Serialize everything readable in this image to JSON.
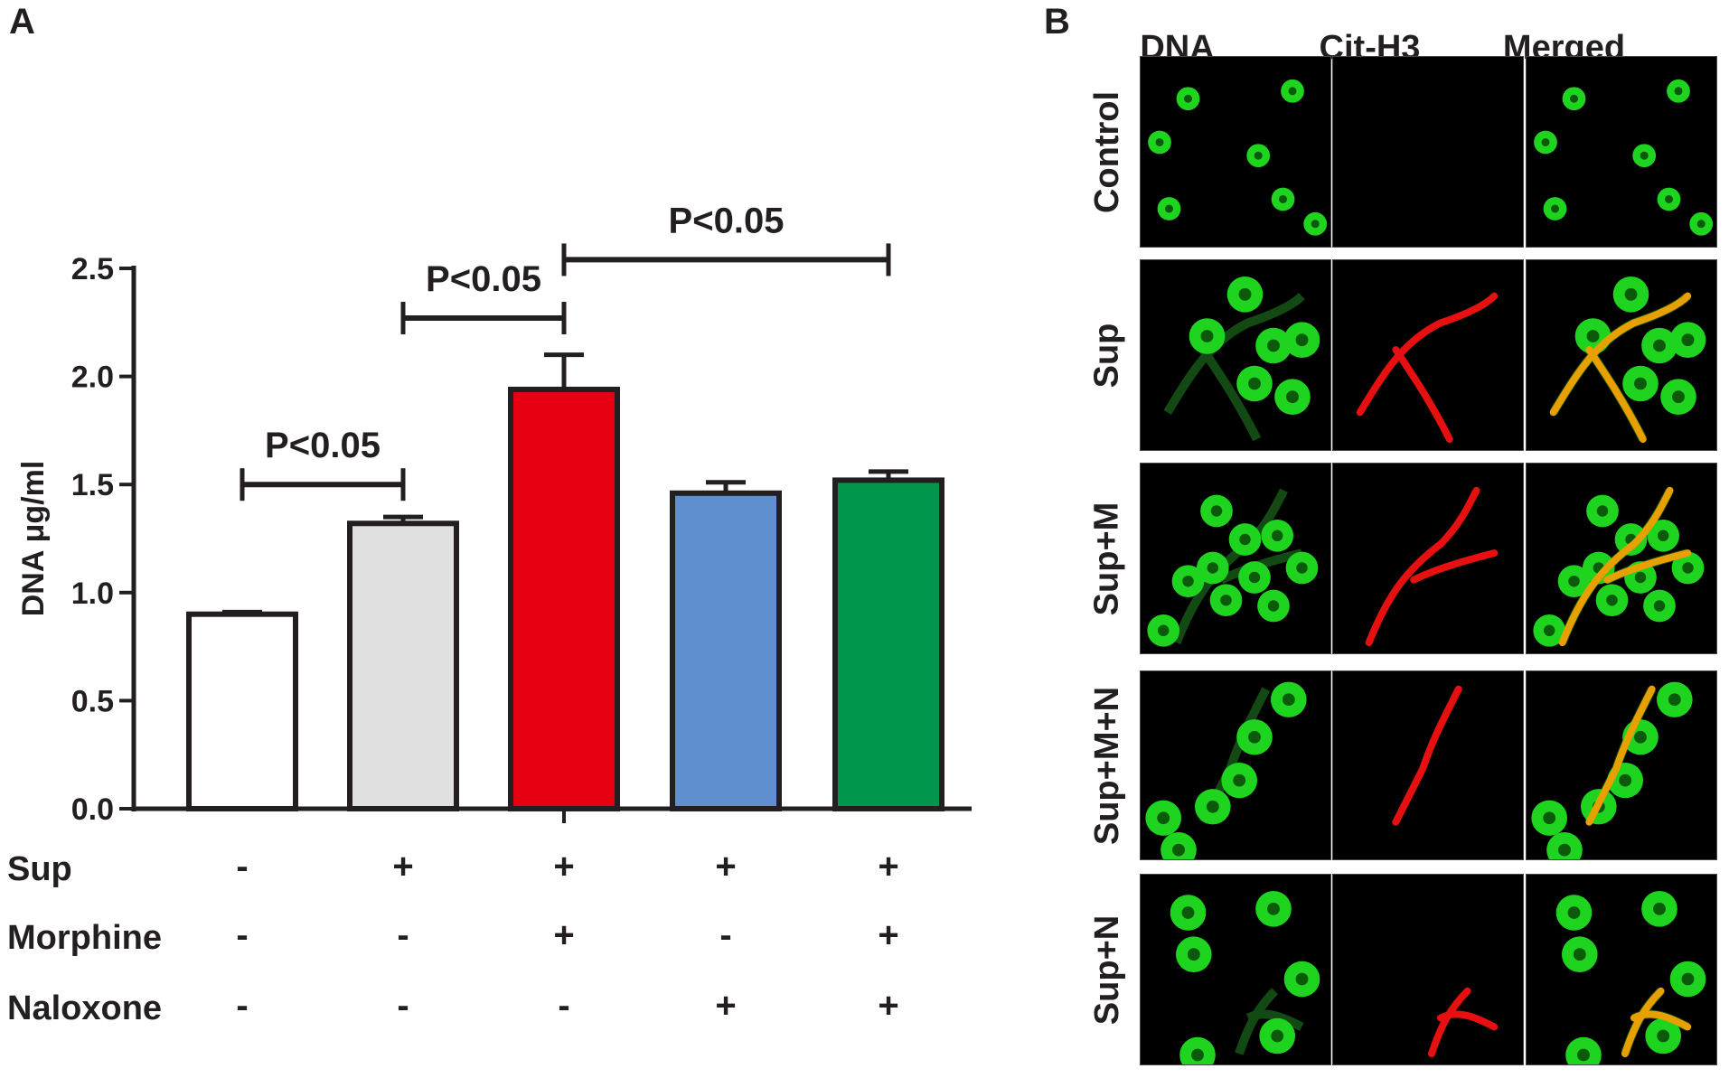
{
  "panel_a_label": "A",
  "panel_b_label": "B",
  "chart_data": {
    "type": "bar",
    "categories": [
      "Sup-/Morphine-/Naloxone-",
      "Sup+/Morphine-/Naloxone-",
      "Sup+/Morphine+/Naloxone-",
      "Sup+/Morphine-/Naloxone+",
      "Sup+/Morphine+/Naloxone+"
    ],
    "values": [
      0.9,
      1.32,
      1.94,
      1.46,
      1.52
    ],
    "errors": [
      0.01,
      0.03,
      0.16,
      0.05,
      0.04
    ],
    "bar_colors": [
      "#ffffff",
      "#e0e0e0",
      "#e60012",
      "#5f8fcf",
      "#00964b"
    ],
    "ylabel": "DNA μg/ml",
    "ylim": [
      0,
      2.5
    ],
    "yticks": [
      "0.0",
      "0.5",
      "1.0",
      "1.5",
      "2.0",
      "2.5"
    ],
    "ytick_values": [
      0,
      0.5,
      1.0,
      1.5,
      2.0,
      2.5
    ],
    "condition_rows": [
      {
        "label": "Sup",
        "signs": [
          "-",
          "+",
          "+",
          "+",
          "+"
        ]
      },
      {
        "label": "Morphine",
        "signs": [
          "-",
          "-",
          "+",
          "-",
          "+"
        ]
      },
      {
        "label": "Naloxone",
        "signs": [
          "-",
          "-",
          "-",
          "+",
          "+"
        ]
      }
    ],
    "significance": [
      {
        "from": 0,
        "to": 1,
        "label": "P<0.05",
        "y": 1.5
      },
      {
        "from": 1,
        "to": 2,
        "label": "P<0.05",
        "y": 2.27
      },
      {
        "from": 2,
        "to": 4,
        "label": "P<0.05",
        "y": 2.54
      }
    ],
    "grid": false
  },
  "micrographs": {
    "columns": [
      "DNA",
      "Cit-H3",
      "Merged"
    ],
    "rows": [
      "Control",
      "Sup",
      "Sup+M",
      "Sup+M+N",
      "Sup+N"
    ]
  }
}
